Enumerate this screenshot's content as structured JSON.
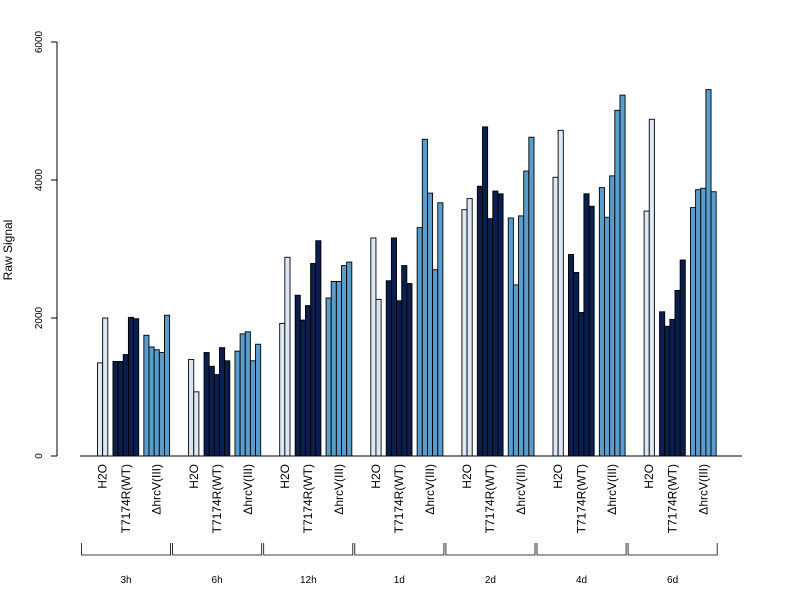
{
  "chart_data": {
    "type": "bar",
    "xlabel": "",
    "ylabel": "Raw Signal",
    "ylim": [
      0,
      6000
    ],
    "y_ticks": [
      0,
      2000,
      4000,
      6000
    ],
    "grid": false,
    "legend": "none",
    "group_labels": [
      "H2O",
      "T7174R(WT)",
      "ΔhrcV(III)"
    ],
    "group_colors": [
      "#dce8f5",
      "#0a1f4e",
      "#5a9ccb"
    ],
    "time_points": [
      {
        "label": "3h",
        "H2O": [
          1350,
          2000
        ],
        "T7174R(WT)": [
          1370,
          1370,
          1470,
          2010,
          1990
        ],
        "ΔhrcV(III)": [
          1750,
          1580,
          1540,
          1500,
          2040
        ]
      },
      {
        "label": "6h",
        "H2O": [
          1400,
          930
        ],
        "T7174R(WT)": [
          1500,
          1300,
          1180,
          1570,
          1380
        ],
        "ΔhrcV(III)": [
          1520,
          1770,
          1800,
          1380,
          1620
        ]
      },
      {
        "label": "12h",
        "H2O": [
          1920,
          2880
        ],
        "T7174R(WT)": [
          2330,
          1970,
          2180,
          2790,
          3120
        ],
        "ΔhrcV(III)": [
          2290,
          2530,
          2530,
          2760,
          2810
        ]
      },
      {
        "label": "1d",
        "H2O": [
          3160,
          2270
        ],
        "T7174R(WT)": [
          2540,
          3160,
          2250,
          2760,
          2500
        ],
        "ΔhrcV(III)": [
          3310,
          4590,
          3810,
          2700,
          3670
        ]
      },
      {
        "label": "2d",
        "H2O": [
          3570,
          3730
        ],
        "T7174R(WT)": [
          3910,
          4770,
          3440,
          3840,
          3800
        ],
        "ΔhrcV(III)": [
          3450,
          2480,
          3480,
          4130,
          4620
        ]
      },
      {
        "label": "4d",
        "H2O": [
          4040,
          4720
        ],
        "T7174R(WT)": [
          2920,
          2660,
          2080,
          3800,
          3620
        ],
        "ΔhrcV(III)": [
          3890,
          3460,
          4060,
          5010,
          5230
        ]
      },
      {
        "label": "6d",
        "H2O": [
          3550,
          4880
        ],
        "T7174R(WT)": [
          2090,
          1880,
          1980,
          2400,
          2840
        ],
        "ΔhrcV(III)": [
          3600,
          3860,
          3880,
          5310,
          3830
        ]
      }
    ]
  }
}
